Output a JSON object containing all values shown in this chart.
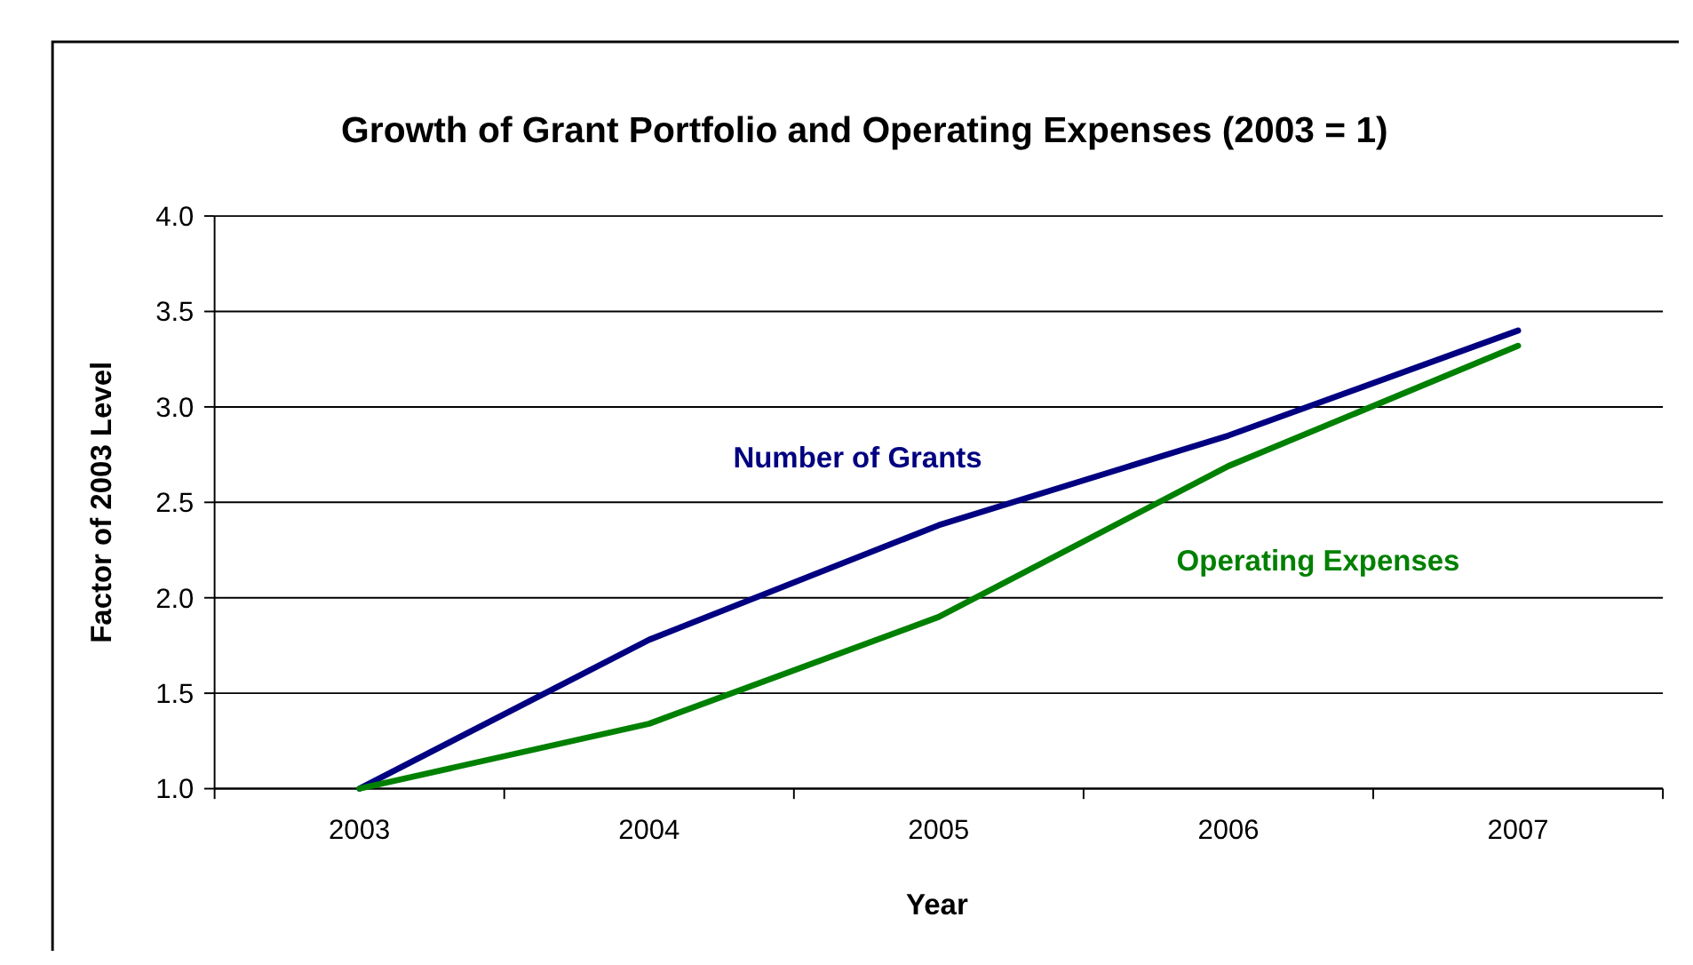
{
  "chart_data": {
    "type": "line",
    "title": "Growth of Grant Portfolio and Operating Expenses (2003 = 1)",
    "xlabel": "Year",
    "ylabel": "Factor of 2003 Level",
    "categories": [
      "2003",
      "2004",
      "2005",
      "2006",
      "2007"
    ],
    "series": [
      {
        "name": "Number of Grants",
        "color": "#000080",
        "values": [
          1.0,
          1.78,
          2.38,
          2.85,
          3.4
        ]
      },
      {
        "name": "Operating Expenses",
        "color": "#008000",
        "values": [
          1.0,
          1.34,
          1.9,
          2.69,
          3.32
        ]
      }
    ],
    "ylim": [
      1.0,
      4.0
    ],
    "yticks": [
      {
        "value": 1,
        "label": "1.0"
      },
      {
        "value": 1.5,
        "label": "1.5"
      },
      {
        "value": 2,
        "label": "2.0"
      },
      {
        "value": 2.5,
        "label": "2.5"
      },
      {
        "value": 3,
        "label": "3.0"
      },
      {
        "value": 3.5,
        "label": "3.5"
      },
      {
        "value": 4,
        "label": "4.0"
      }
    ],
    "grid": "y",
    "legend": false,
    "marker": "none",
    "line_style": "solid"
  }
}
